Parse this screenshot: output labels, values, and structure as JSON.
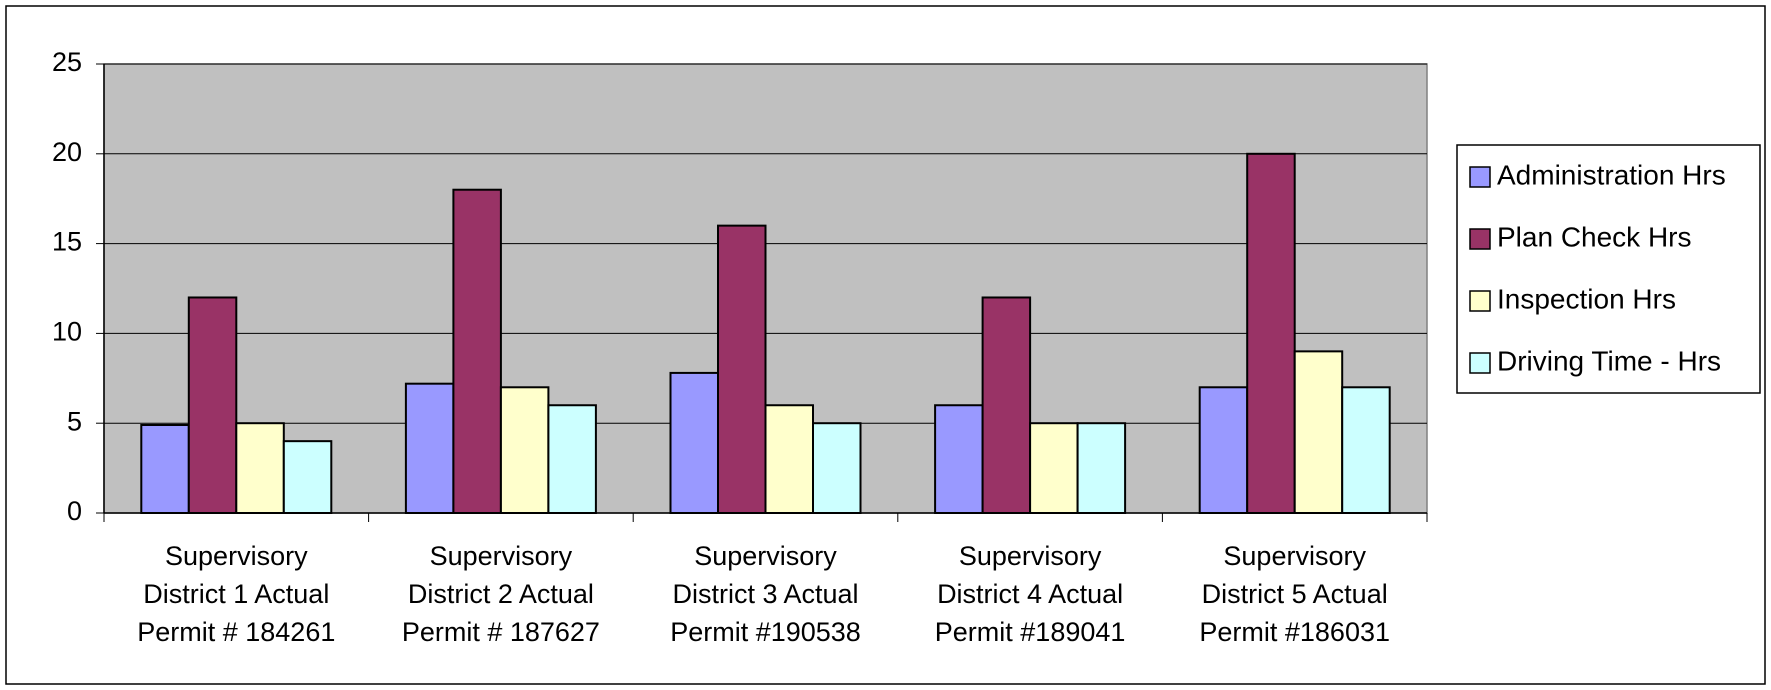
{
  "chart_data": {
    "type": "bar",
    "categories": [
      "Supervisory\nDistrict 1 Actual\nPermit # 184261",
      "Supervisory\nDistrict 2 Actual\nPermit # 187627",
      "Supervisory\nDistrict 3 Actual\nPermit #190538",
      "Supervisory\nDistrict 4 Actual\nPermit #189041",
      "Supervisory\nDistrict 5 Actual\nPermit #186031"
    ],
    "series": [
      {
        "name": "Administration Hrs",
        "color": "#9999ff",
        "values": [
          4.9,
          7.2,
          7.8,
          6,
          7
        ]
      },
      {
        "name": "Plan Check Hrs",
        "color": "#993366",
        "values": [
          12,
          18,
          16,
          12,
          20
        ]
      },
      {
        "name": "Inspection Hrs",
        "color": "#ffffcc",
        "values": [
          5,
          7,
          6,
          5,
          9
        ]
      },
      {
        "name": "Driving Time - Hrs",
        "color": "#ccffff",
        "values": [
          4,
          6,
          5,
          5,
          7
        ]
      }
    ],
    "ylim": [
      0,
      25
    ],
    "yticks": [
      0,
      5,
      10,
      15,
      20,
      25
    ],
    "grid": true,
    "legend": "right"
  }
}
